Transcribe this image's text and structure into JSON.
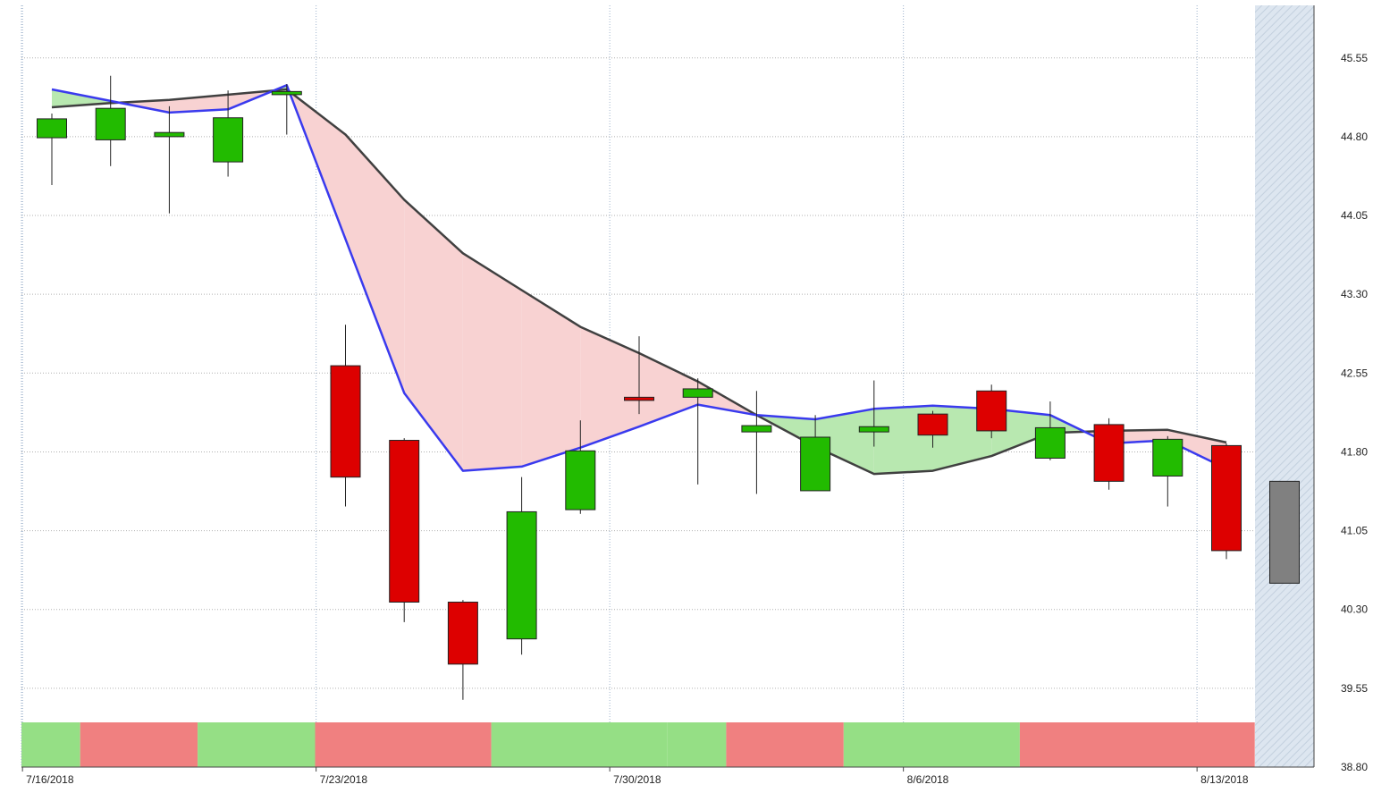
{
  "chart_data": {
    "type": "candlestick",
    "x_ticks": [
      "7/16/2018",
      "7/23/2018",
      "7/30/2018",
      "8/6/2018",
      "8/13/2018"
    ],
    "y_ticks": [
      "45.55",
      "44.80",
      "44.05",
      "43.30",
      "42.55",
      "41.80",
      "41.05",
      "40.30",
      "39.55",
      "38.80"
    ],
    "ylim": [
      38.8,
      46.05
    ],
    "grid": "dotted",
    "colors": {
      "up": "#22bb00",
      "down": "#dd0000",
      "pending": "#808080",
      "fast_line": "#3a3aee",
      "slow_line": "#404040",
      "fill_bull": "#b8e8b0",
      "fill_bear": "#f8d2d2",
      "band_bull": "#95df85",
      "band_bear": "#f08080",
      "future_shade": "#dde6f0"
    },
    "candles": [
      {
        "date": "7/16/2018",
        "open": 44.79,
        "high": 45.02,
        "low": 44.34,
        "close": 44.97
      },
      {
        "date": "7/17/2018",
        "open": 44.77,
        "high": 45.38,
        "low": 44.52,
        "close": 45.07
      },
      {
        "date": "7/18/2018",
        "open": 44.8,
        "high": 45.09,
        "low": 44.07,
        "close": 44.84
      },
      {
        "date": "7/19/2018",
        "open": 44.56,
        "high": 45.24,
        "low": 44.42,
        "close": 44.98
      },
      {
        "date": "7/20/2018",
        "open": 45.2,
        "high": 45.3,
        "low": 44.82,
        "close": 45.23
      },
      {
        "date": "7/23/2018",
        "open": 42.62,
        "high": 43.01,
        "low": 41.28,
        "close": 41.56
      },
      {
        "date": "7/24/2018",
        "open": 41.91,
        "high": 41.93,
        "low": 40.18,
        "close": 40.37
      },
      {
        "date": "7/25/2018",
        "open": 40.37,
        "high": 40.39,
        "low": 39.44,
        "close": 39.78
      },
      {
        "date": "7/26/2018",
        "open": 40.02,
        "high": 41.56,
        "low": 39.87,
        "close": 41.23
      },
      {
        "date": "7/27/2018",
        "open": 41.25,
        "high": 42.1,
        "low": 41.21,
        "close": 41.81
      },
      {
        "date": "7/30/2018",
        "open": 42.32,
        "high": 42.9,
        "low": 42.16,
        "close": 42.29
      },
      {
        "date": "7/31/2018",
        "open": 42.32,
        "high": 42.5,
        "low": 41.49,
        "close": 42.4
      },
      {
        "date": "8/1/2018",
        "open": 41.99,
        "high": 42.38,
        "low": 41.4,
        "close": 42.05
      },
      {
        "date": "8/2/2018",
        "open": 41.43,
        "high": 42.15,
        "low": 41.43,
        "close": 41.94
      },
      {
        "date": "8/3/2018",
        "open": 41.99,
        "high": 42.48,
        "low": 41.85,
        "close": 42.04
      },
      {
        "date": "8/6/2018",
        "open": 42.16,
        "high": 42.19,
        "low": 41.84,
        "close": 41.96
      },
      {
        "date": "8/7/2018",
        "open": 42.38,
        "high": 42.44,
        "low": 41.93,
        "close": 42.0
      },
      {
        "date": "8/8/2018",
        "open": 41.74,
        "high": 42.28,
        "low": 41.72,
        "close": 42.03
      },
      {
        "date": "8/9/2018",
        "open": 42.06,
        "high": 42.12,
        "low": 41.44,
        "close": 41.52
      },
      {
        "date": "8/10/2018",
        "open": 41.57,
        "high": 41.95,
        "low": 41.28,
        "close": 41.92
      },
      {
        "date": "8/13/2018",
        "open": 41.86,
        "high": 41.88,
        "low": 40.78,
        "close": 40.86
      }
    ],
    "pending_bar": {
      "top": 41.52,
      "bottom": 40.55
    },
    "fast_line": [
      45.25,
      45.14,
      45.03,
      45.06,
      45.29,
      null,
      42.36,
      41.62,
      41.66,
      41.84,
      42.04,
      42.25,
      42.15,
      42.11,
      42.21,
      42.24,
      42.21,
      42.15,
      41.88,
      41.91,
      41.64
    ],
    "slow_line": [
      45.08,
      45.12,
      45.15,
      45.2,
      45.25,
      44.82,
      44.2,
      43.69,
      43.34,
      42.99,
      42.74,
      42.47,
      42.15,
      41.85,
      41.59,
      41.62,
      41.76,
      41.98,
      42.0,
      42.01,
      41.89
    ],
    "band": [
      {
        "from": 0,
        "to": 1,
        "state": "bull"
      },
      {
        "from": 1,
        "to": 3,
        "state": "bear"
      },
      {
        "from": 3,
        "to": 5,
        "state": "bull"
      },
      {
        "from": 5,
        "to": 8,
        "state": "bear"
      },
      {
        "from": 8,
        "to": 11,
        "state": "bull"
      },
      {
        "from": 11,
        "to": 12,
        "state": "bull"
      },
      {
        "from": 12,
        "to": 14,
        "state": "bear"
      },
      {
        "from": 14,
        "to": 17,
        "state": "bull"
      },
      {
        "from": 17,
        "to": 21,
        "state": "bear"
      }
    ]
  }
}
